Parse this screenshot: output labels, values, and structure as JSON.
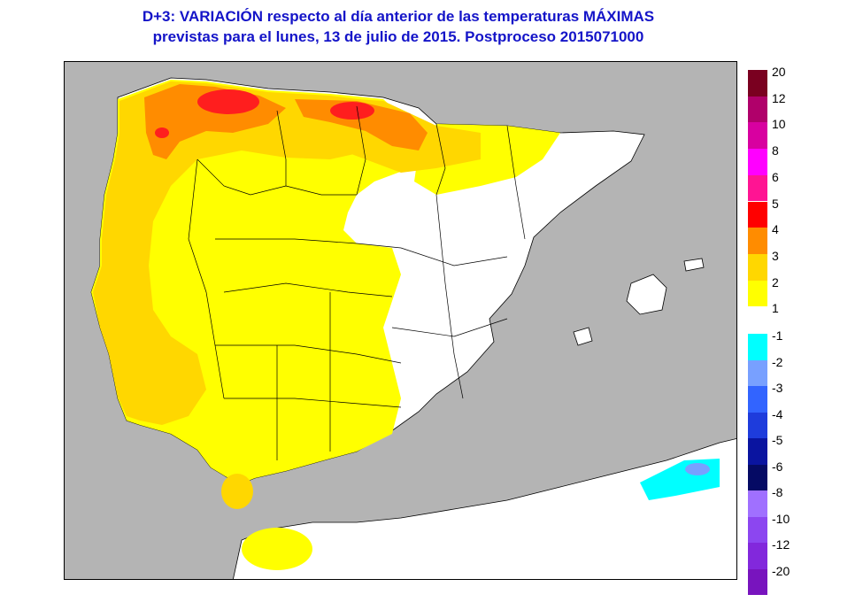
{
  "title": {
    "line1": "D+3:  VARIACIÓN respecto al día anterior de las temperaturas MÁXIMAS",
    "line2": "previstas para el lunes, 13 de julio de 2015. Postproceso 2015071000"
  },
  "map": {
    "colors": {
      "sea": "#b4b4b4",
      "no_change": "#ffffff",
      "plus1": "#ffff00",
      "plus2": "#ffd700",
      "plus3": "#ff8c00",
      "plus4": "#ff1e1e",
      "minus1": "#00ffff",
      "minus2": "#78a0ff",
      "border": "#000000"
    }
  },
  "legend": {
    "positive": [
      {
        "label": "20",
        "color": "#7a0020"
      },
      {
        "label": "12",
        "color": "#b0006a"
      },
      {
        "label": "10",
        "color": "#d800a0"
      },
      {
        "label": "8",
        "color": "#ff00ff"
      },
      {
        "label": "6",
        "color": "#ff1493"
      },
      {
        "label": "5",
        "color": "#ff0000"
      },
      {
        "label": "4",
        "color": "#ff8c00"
      },
      {
        "label": "3",
        "color": "#ffd700"
      },
      {
        "label": "2",
        "color": "#ffff00"
      },
      {
        "label": "1",
        "color": ""
      }
    ],
    "negative": [
      {
        "label": "-1",
        "color": "#00ffff"
      },
      {
        "label": "-2",
        "color": "#78a0ff"
      },
      {
        "label": "-3",
        "color": "#3264ff"
      },
      {
        "label": "-4",
        "color": "#1e3cdc"
      },
      {
        "label": "-5",
        "color": "#0a14a0"
      },
      {
        "label": "-6",
        "color": "#050a64"
      },
      {
        "label": "-8",
        "color": "#a070ff"
      },
      {
        "label": "-10",
        "color": "#8c46f0"
      },
      {
        "label": "-12",
        "color": "#8228dc"
      },
      {
        "label": "-20",
        "color": "#7814be"
      }
    ]
  }
}
